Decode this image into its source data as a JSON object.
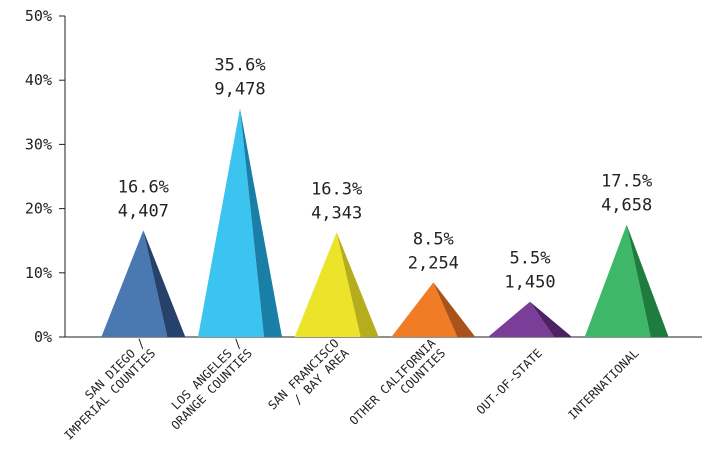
{
  "chart_data": {
    "type": "bar",
    "categories": [
      [
        "SAN DIEGO /",
        "IMPERIAL COUNTIES"
      ],
      [
        "LOS ANGELES /",
        "ORANGE COUNTIES"
      ],
      [
        "SAN FRANCISCO",
        "/ BAY AREA"
      ],
      [
        "OTHER CALIFORNIA",
        "COUNTIES"
      ],
      [
        "OUT-OF-STATE"
      ],
      [
        "INTERNATIONAL"
      ]
    ],
    "values": [
      16.6,
      35.6,
      16.3,
      8.5,
      5.5,
      17.5
    ],
    "percent_labels": [
      "16.6%",
      "35.6%",
      "16.3%",
      "8.5%",
      "5.5%",
      "17.5%"
    ],
    "count_labels": [
      "4,407",
      "9,478",
      "4,343",
      "2,254",
      "1,450",
      "4,658"
    ],
    "colors": [
      "#4a78b0",
      "#3cc4f0",
      "#ece42a",
      "#f07c26",
      "#7a3e98",
      "#3eb868"
    ],
    "shade_colors": [
      "#27426a",
      "#1a7fa6",
      "#b6ad1c",
      "#a9521a",
      "#4c2264",
      "#1f7c40"
    ],
    "ylim": [
      0,
      50
    ],
    "yticks": [
      "0%",
      "10%",
      "20%",
      "30%",
      "40%",
      "50%"
    ],
    "xlabel": "",
    "ylabel": "",
    "title": ""
  }
}
